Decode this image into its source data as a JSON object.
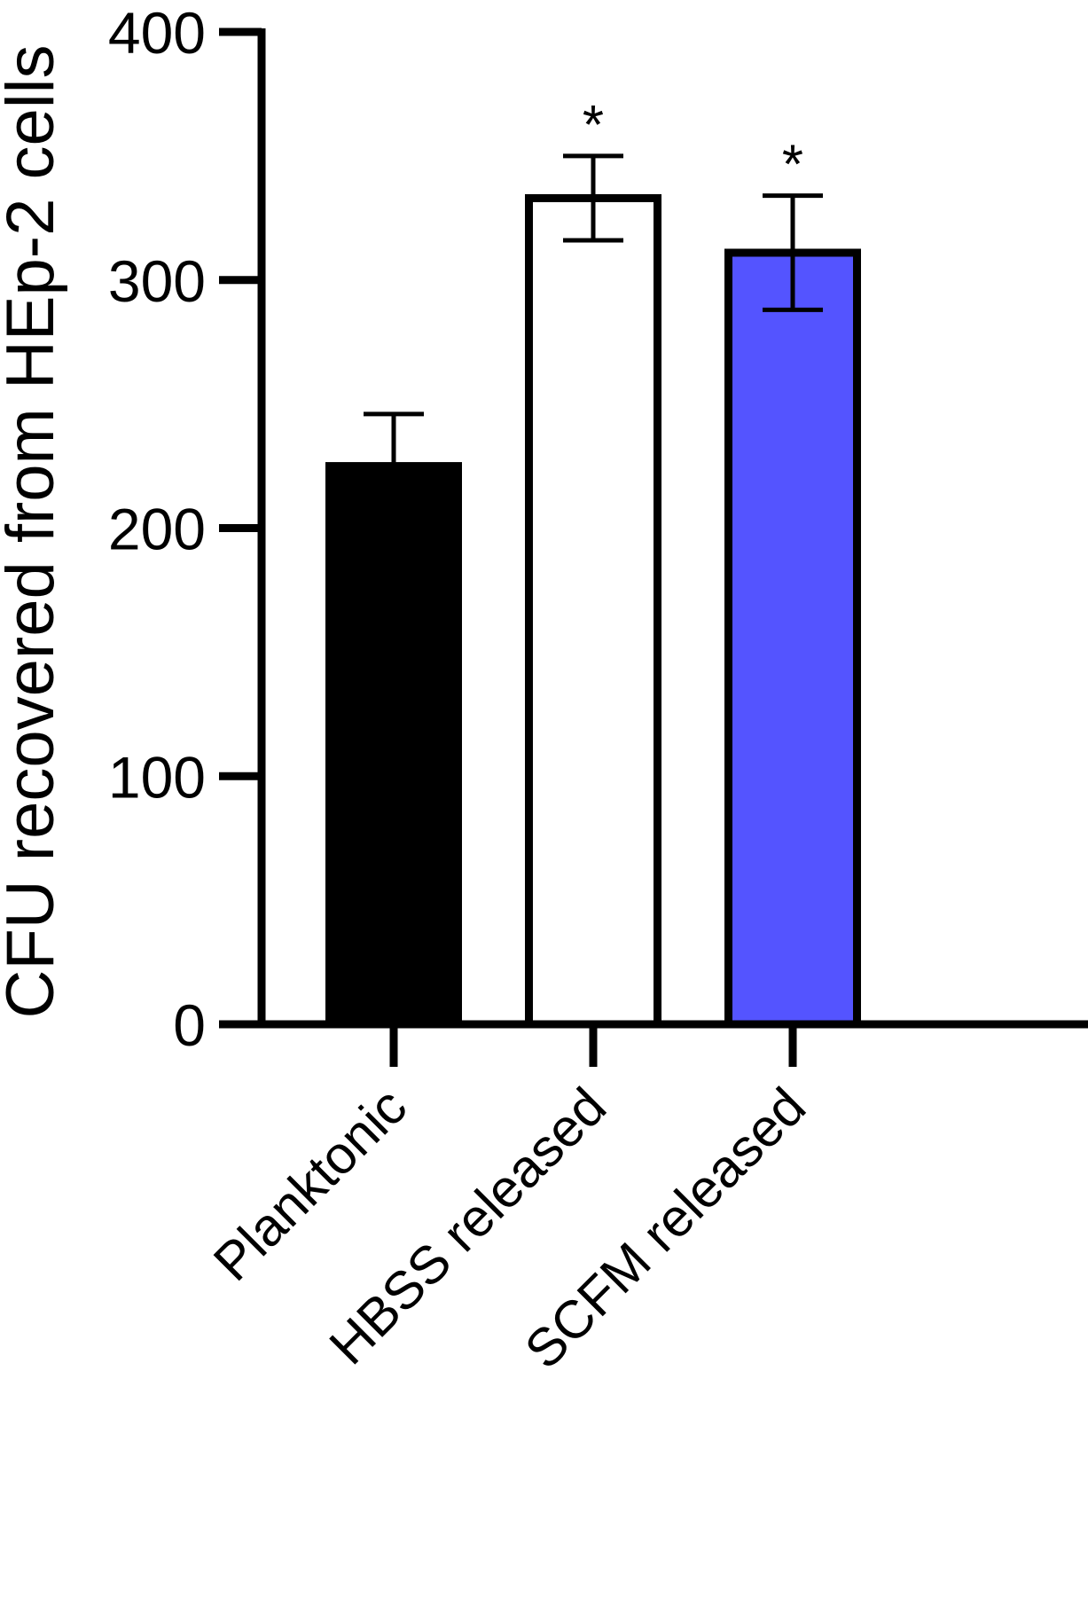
{
  "chart_data": {
    "type": "bar",
    "title": "",
    "xlabel": "",
    "ylabel": "CFU recovered from HEp-2 cells",
    "ylim": [
      0,
      400
    ],
    "yticks": [
      0,
      100,
      200,
      300,
      400
    ],
    "ytick_labels": [
      "0",
      "100",
      "200",
      "300",
      "400"
    ],
    "categories": [
      "Planktonic",
      "HBSS released",
      "SCFM released"
    ],
    "values": [
      225,
      333,
      311
    ],
    "error": [
      21,
      17,
      23
    ],
    "annotations": [
      "",
      "*",
      "*"
    ],
    "colors": [
      "#000000",
      "#ffffff",
      "#5454ff"
    ],
    "edge_color": "#000000",
    "grid": false,
    "legend": "none"
  }
}
